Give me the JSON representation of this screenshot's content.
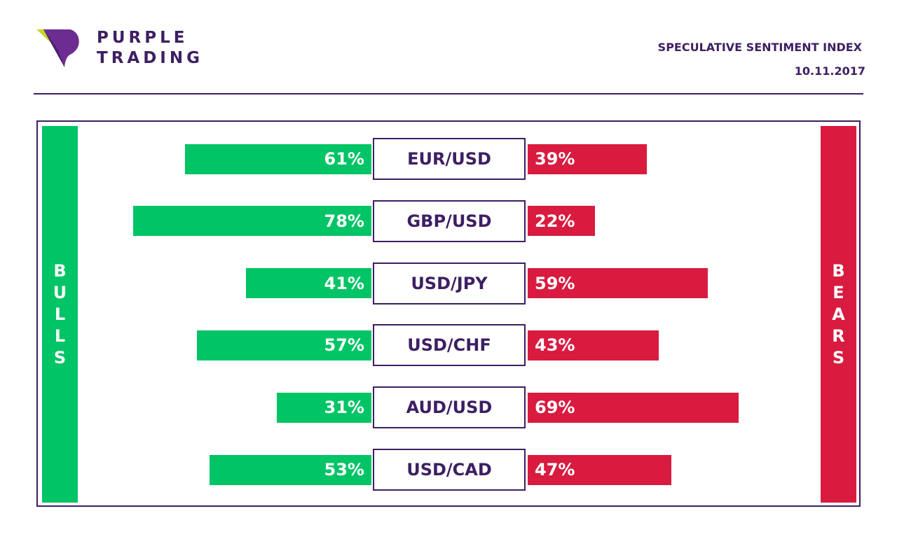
{
  "header": {
    "brand_line1": "PURPLE",
    "brand_line2": "TRADING",
    "index_title": "SPECULATIVE SENTIMENT INDEX",
    "date": "10.11.2017"
  },
  "side_labels": {
    "bulls": "BULLS",
    "bears": "BEARS"
  },
  "colors": {
    "brand_purple": "#3d1f63",
    "bulls_green": "#00c465",
    "bears_red": "#d81b3f",
    "logo_lime": "#c6d62a",
    "logo_violet": "#6d2c91"
  },
  "icons": {
    "logo": "purple-trading-logo-icon"
  },
  "chart_data": {
    "type": "bar",
    "categories": [
      "EUR/USD",
      "GBP/USD",
      "USD/JPY",
      "USD/CHF",
      "AUD/USD",
      "USD/CAD"
    ],
    "series": [
      {
        "name": "BULLS",
        "values": [
          61,
          78,
          41,
          57,
          31,
          53
        ],
        "labels": [
          "61%",
          "78%",
          "41%",
          "57%",
          "31%",
          "53%"
        ]
      },
      {
        "name": "BEARS",
        "values": [
          39,
          22,
          59,
          43,
          69,
          47
        ],
        "labels": [
          "39%",
          "22%",
          "59%",
          "43%",
          "69%",
          "47%"
        ]
      }
    ],
    "title": "SPECULATIVE SENTIMENT INDEX",
    "ylim": [
      0,
      100
    ]
  }
}
